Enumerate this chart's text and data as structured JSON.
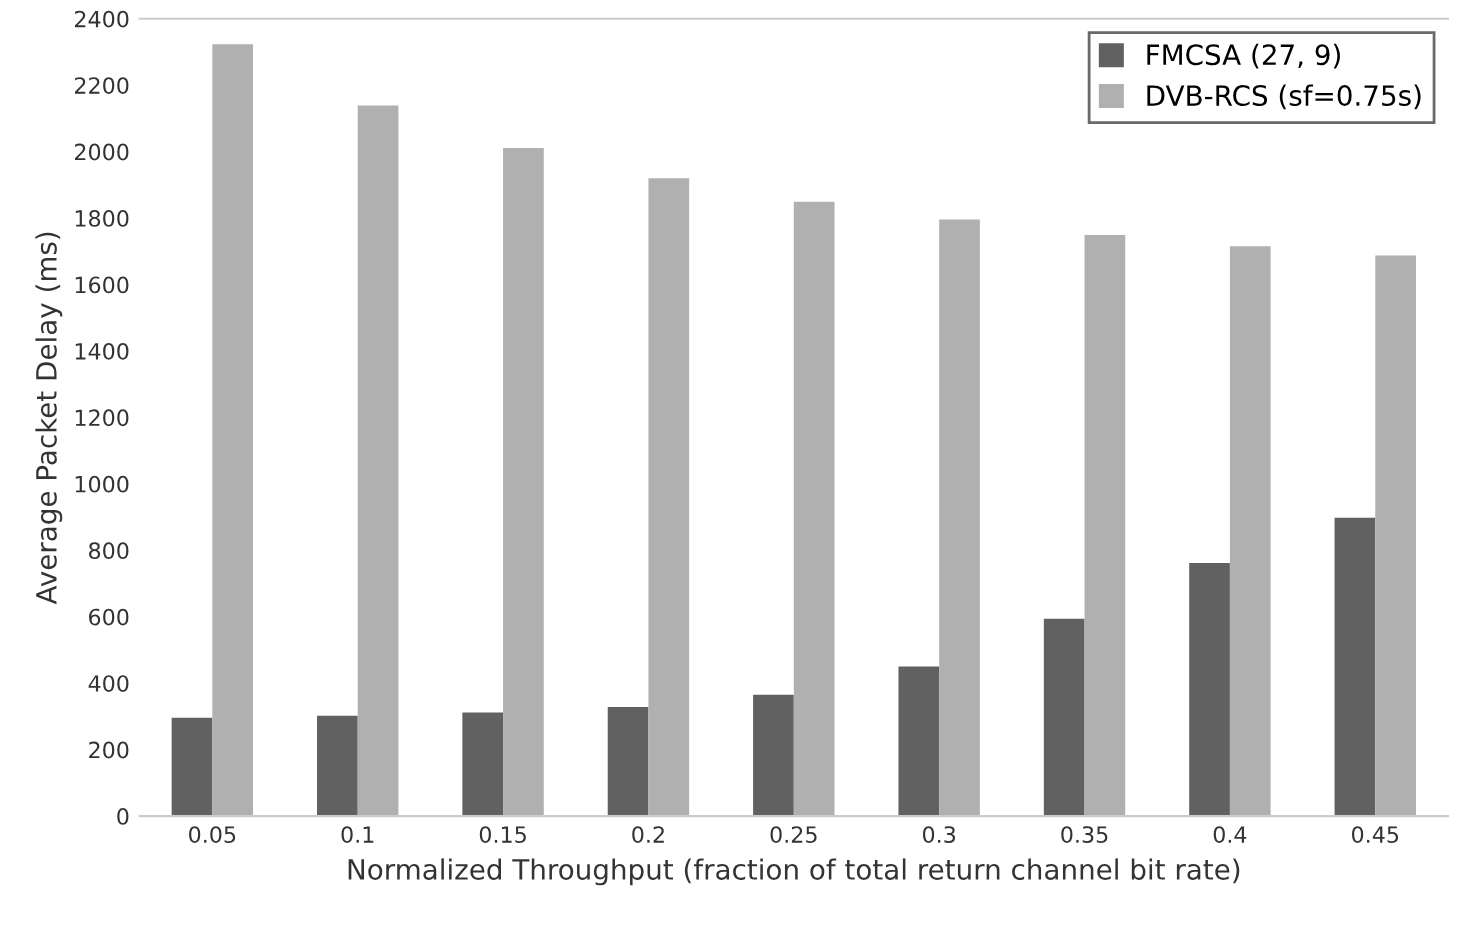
{
  "chart_data": {
    "type": "bar",
    "xlabel": "Normalized Throughput (fraction of total return channel bit rate)",
    "ylabel": "Average Packet Delay (ms)",
    "categories": [
      "0.05",
      "0.1",
      "0.15",
      "0.2",
      "0.25",
      "0.3",
      "0.35",
      "0.4",
      "0.45"
    ],
    "series": [
      {
        "name": "FMCSA (27, 9)",
        "color": "#616161",
        "values": [
          296,
          302,
          312,
          328,
          365,
          450,
          594,
          762,
          898
        ]
      },
      {
        "name": "DVB-RCS (sf=0.75s)",
        "color": "#b0b0b0",
        "values": [
          2323,
          2139,
          2011,
          1920,
          1849,
          1796,
          1749,
          1715,
          1687
        ]
      }
    ],
    "ylim": [
      0,
      2400
    ],
    "yticks": [
      0,
      200,
      400,
      600,
      800,
      1000,
      1200,
      1400,
      1600,
      1800,
      2000,
      2200,
      2400
    ],
    "legend": "top right"
  }
}
